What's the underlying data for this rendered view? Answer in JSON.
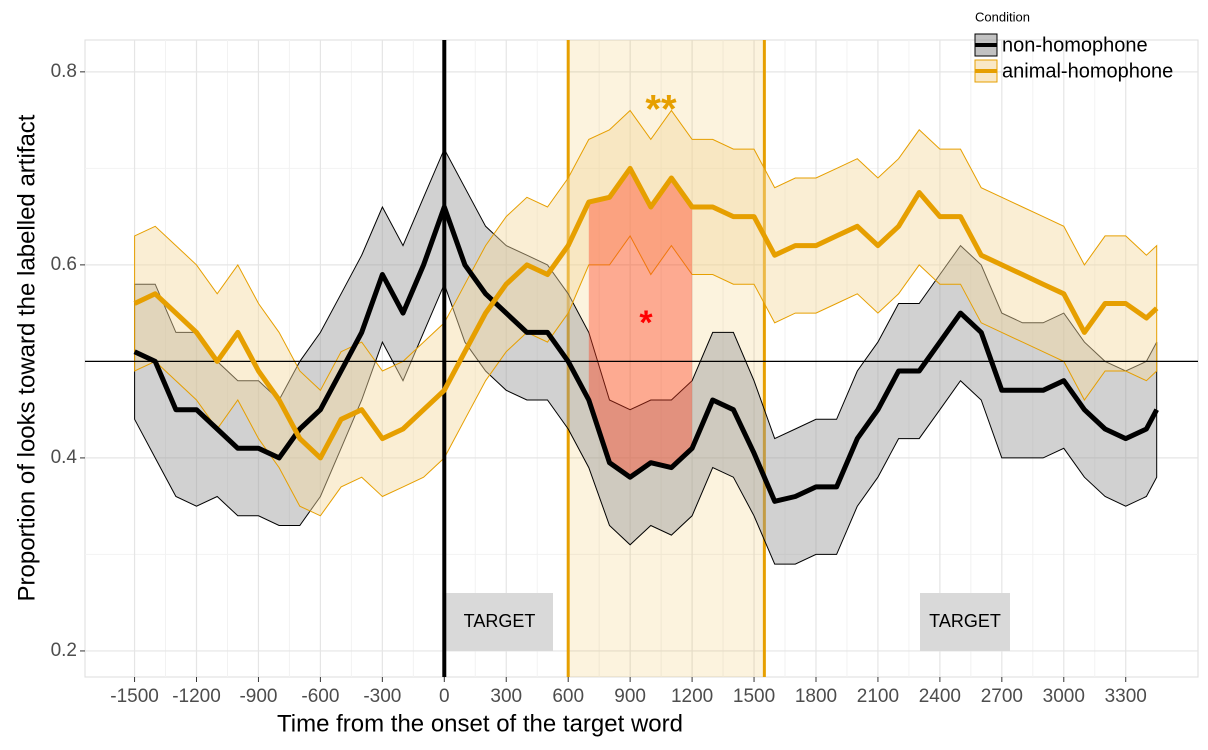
{
  "chart_data": {
    "type": "line",
    "xlabel": "Time from the onset of the target word",
    "ylabel": "Proportion of looks toward the labelled artifact",
    "legend_title": "Condition",
    "x": [
      -1500,
      -1400,
      -1300,
      -1200,
      -1100,
      -1000,
      -900,
      -800,
      -700,
      -600,
      -500,
      -400,
      -300,
      -200,
      -100,
      0,
      100,
      200,
      300,
      400,
      500,
      600,
      700,
      800,
      900,
      1000,
      1100,
      1200,
      1300,
      1400,
      1500,
      1600,
      1700,
      1800,
      1900,
      2000,
      2100,
      2200,
      2300,
      2400,
      2500,
      2600,
      2700,
      2800,
      2900,
      3000,
      3100,
      3200,
      3300,
      3400,
      3450
    ],
    "series": [
      {
        "name": "non-homophone",
        "color": "#000000",
        "band_color": "#999999",
        "values": [
          0.51,
          0.5,
          0.45,
          0.45,
          0.43,
          0.41,
          0.41,
          0.4,
          0.43,
          0.45,
          0.49,
          0.53,
          0.59,
          0.55,
          0.6,
          0.66,
          0.6,
          0.57,
          0.55,
          0.53,
          0.53,
          0.5,
          0.46,
          0.395,
          0.38,
          0.395,
          0.39,
          0.41,
          0.46,
          0.45,
          0.405,
          0.355,
          0.36,
          0.37,
          0.37,
          0.42,
          0.45,
          0.49,
          0.49,
          0.52,
          0.55,
          0.53,
          0.47,
          0.47,
          0.47,
          0.48,
          0.45,
          0.43,
          0.42,
          0.43,
          0.45
        ],
        "lower": [
          0.44,
          0.4,
          0.36,
          0.35,
          0.36,
          0.34,
          0.34,
          0.33,
          0.33,
          0.36,
          0.41,
          0.46,
          0.52,
          0.48,
          0.53,
          0.58,
          0.52,
          0.49,
          0.47,
          0.46,
          0.46,
          0.43,
          0.39,
          0.33,
          0.31,
          0.33,
          0.32,
          0.34,
          0.39,
          0.38,
          0.34,
          0.29,
          0.29,
          0.3,
          0.3,
          0.35,
          0.38,
          0.42,
          0.42,
          0.45,
          0.48,
          0.46,
          0.4,
          0.4,
          0.4,
          0.41,
          0.38,
          0.36,
          0.35,
          0.36,
          0.38
        ],
        "upper": [
          0.58,
          0.58,
          0.53,
          0.53,
          0.5,
          0.48,
          0.48,
          0.46,
          0.5,
          0.53,
          0.57,
          0.61,
          0.66,
          0.62,
          0.67,
          0.72,
          0.68,
          0.64,
          0.62,
          0.61,
          0.6,
          0.57,
          0.53,
          0.46,
          0.45,
          0.46,
          0.46,
          0.48,
          0.53,
          0.53,
          0.48,
          0.42,
          0.43,
          0.44,
          0.44,
          0.49,
          0.52,
          0.56,
          0.56,
          0.59,
          0.62,
          0.6,
          0.55,
          0.54,
          0.54,
          0.55,
          0.52,
          0.5,
          0.49,
          0.5,
          0.52
        ]
      },
      {
        "name": "animal-homophone",
        "color": "#e69f00",
        "band_color": "#f5d9a0",
        "values": [
          0.56,
          0.57,
          0.55,
          0.53,
          0.5,
          0.53,
          0.49,
          0.46,
          0.42,
          0.4,
          0.44,
          0.45,
          0.42,
          0.43,
          0.45,
          0.47,
          0.51,
          0.55,
          0.58,
          0.6,
          0.59,
          0.62,
          0.665,
          0.67,
          0.7,
          0.66,
          0.69,
          0.66,
          0.66,
          0.65,
          0.65,
          0.61,
          0.62,
          0.62,
          0.63,
          0.64,
          0.62,
          0.64,
          0.675,
          0.65,
          0.65,
          0.61,
          0.6,
          0.59,
          0.58,
          0.57,
          0.53,
          0.56,
          0.56,
          0.545,
          0.555
        ],
        "lower": [
          0.49,
          0.5,
          0.48,
          0.46,
          0.43,
          0.46,
          0.42,
          0.39,
          0.35,
          0.34,
          0.37,
          0.38,
          0.36,
          0.37,
          0.38,
          0.4,
          0.44,
          0.48,
          0.51,
          0.53,
          0.52,
          0.55,
          0.6,
          0.6,
          0.63,
          0.59,
          0.62,
          0.59,
          0.59,
          0.58,
          0.58,
          0.54,
          0.55,
          0.55,
          0.56,
          0.57,
          0.55,
          0.57,
          0.6,
          0.58,
          0.58,
          0.54,
          0.53,
          0.52,
          0.51,
          0.5,
          0.46,
          0.49,
          0.49,
          0.48,
          0.49
        ],
        "upper": [
          0.63,
          0.64,
          0.62,
          0.6,
          0.57,
          0.6,
          0.56,
          0.53,
          0.49,
          0.47,
          0.51,
          0.52,
          0.49,
          0.5,
          0.52,
          0.54,
          0.58,
          0.62,
          0.65,
          0.67,
          0.66,
          0.69,
          0.73,
          0.74,
          0.76,
          0.73,
          0.76,
          0.73,
          0.73,
          0.72,
          0.72,
          0.68,
          0.69,
          0.69,
          0.7,
          0.71,
          0.69,
          0.71,
          0.74,
          0.72,
          0.72,
          0.68,
          0.67,
          0.66,
          0.65,
          0.64,
          0.6,
          0.63,
          0.63,
          0.61,
          0.62
        ]
      }
    ],
    "xlim": [
      -1740,
      3650
    ],
    "ylim": [
      0.173,
      0.833
    ],
    "xticks": [
      -1500,
      -1200,
      -900,
      -600,
      -300,
      0,
      300,
      600,
      900,
      1200,
      1500,
      1800,
      2100,
      2400,
      2700,
      3000,
      3300
    ],
    "yticks": [
      0.2,
      0.4,
      0.6,
      0.8
    ],
    "grid": true,
    "reference_line": 0.5,
    "onset_line": 0,
    "shaded_window": [
      600,
      1550
    ],
    "highlight_window": [
      700,
      1250
    ],
    "annotations": [
      "**",
      "*",
      "TARGET",
      "TARGET"
    ]
  }
}
